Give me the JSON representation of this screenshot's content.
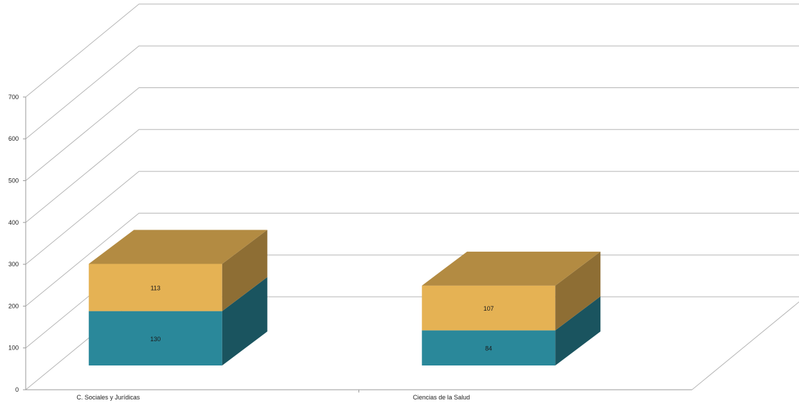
{
  "chart_data": {
    "type": "bar",
    "stacked": true,
    "three_d": true,
    "categories": [
      "C. Sociales y Jurídicas",
      "Ciencias de la Salud"
    ],
    "series": [
      {
        "values": [
          130,
          84
        ],
        "color": "#2a889a"
      },
      {
        "values": [
          113,
          107
        ],
        "color": "#e5b254"
      }
    ],
    "ylim": [
      0,
      700
    ],
    "yticks": [
      0,
      100,
      200,
      300,
      400,
      500,
      600,
      700
    ],
    "grid": true,
    "legend": "none",
    "title": "",
    "xlabel": "",
    "ylabel": ""
  }
}
